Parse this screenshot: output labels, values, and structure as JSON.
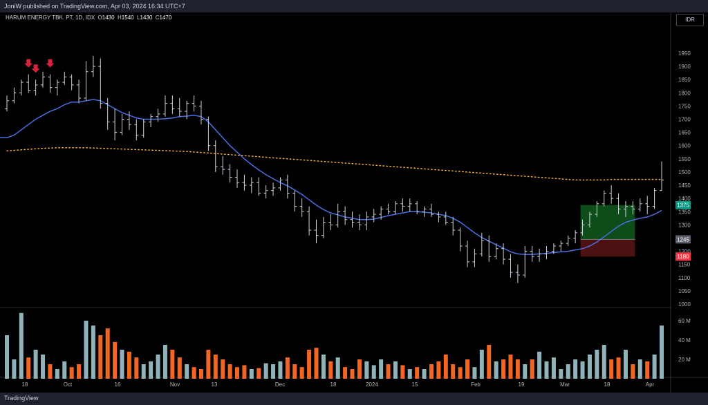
{
  "header": {
    "publish_text": "JoniW published on TradingView.com, Apr 03, 2024 16:34 UTC+7"
  },
  "legend": {
    "symbol": "HARUM ENERGY TBK. PT, 1D, IDX",
    "o_label": "O",
    "o": "1430",
    "h_label": "H",
    "h": "1540",
    "l_label": "L",
    "l": "1430",
    "c_label": "C",
    "c": "1470"
  },
  "currency_button": "IDR",
  "footer": {
    "brand": "TradingView"
  },
  "colors": {
    "ma_short": "#4a6fe0",
    "ma_long": "#f0a93a",
    "volume_up": "#8fb3b8",
    "volume_down": "#f26522",
    "target_zone": "#0f5a1e",
    "stop_zone": "#5a1414",
    "marker": "#d8213b"
  },
  "chart_data": {
    "type": "ohlc",
    "price_axis": {
      "min": 1000,
      "max": 1950,
      "ticks": [
        1000,
        1050,
        1100,
        1150,
        1200,
        1250,
        1300,
        1350,
        1400,
        1450,
        1500,
        1550,
        1600,
        1650,
        1700,
        1750,
        1800,
        1850,
        1900,
        1950
      ]
    },
    "volume_axis": {
      "ticks": [
        "20 M",
        "40 M",
        "60 M"
      ],
      "values": [
        20,
        40,
        60
      ]
    },
    "x_ticks": [
      "18",
      "Oct",
      "16",
      "Nov",
      "13",
      "Dec",
      "18",
      "2024",
      "15",
      "Feb",
      "19",
      "Mar",
      "18",
      "Apr"
    ],
    "price_labels": [
      {
        "text": "1375",
        "value": 1375,
        "color": "#089981"
      },
      {
        "text": "1245",
        "value": 1245,
        "color": "#5d606b"
      },
      {
        "text": "1180",
        "value": 1180,
        "color": "#f23645"
      }
    ],
    "bars": [
      [
        1740,
        1790,
        1730,
        1770
      ],
      [
        1770,
        1820,
        1760,
        1800
      ],
      [
        1800,
        1850,
        1790,
        1840
      ],
      [
        1840,
        1870,
        1800,
        1810
      ],
      [
        1810,
        1850,
        1790,
        1830
      ],
      [
        1830,
        1880,
        1820,
        1860
      ],
      [
        1860,
        1870,
        1800,
        1820
      ],
      [
        1820,
        1850,
        1790,
        1840
      ],
      [
        1840,
        1880,
        1830,
        1860
      ],
      [
        1860,
        1870,
        1810,
        1830
      ],
      [
        1830,
        1850,
        1760,
        1780
      ],
      [
        1780,
        1920,
        1770,
        1880
      ],
      [
        1880,
        1940,
        1860,
        1900
      ],
      [
        1900,
        1930,
        1740,
        1760
      ],
      [
        1760,
        1780,
        1660,
        1690
      ],
      [
        1690,
        1740,
        1620,
        1650
      ],
      [
        1650,
        1720,
        1640,
        1700
      ],
      [
        1700,
        1730,
        1660,
        1680
      ],
      [
        1680,
        1700,
        1620,
        1640
      ],
      [
        1640,
        1700,
        1630,
        1690
      ],
      [
        1690,
        1720,
        1670,
        1710
      ],
      [
        1710,
        1740,
        1690,
        1720
      ],
      [
        1720,
        1790,
        1710,
        1760
      ],
      [
        1760,
        1790,
        1720,
        1740
      ],
      [
        1740,
        1780,
        1710,
        1730
      ],
      [
        1730,
        1770,
        1700,
        1760
      ],
      [
        1760,
        1790,
        1730,
        1750
      ],
      [
        1750,
        1770,
        1680,
        1700
      ],
      [
        1700,
        1710,
        1580,
        1600
      ],
      [
        1600,
        1620,
        1500,
        1520
      ],
      [
        1520,
        1560,
        1490,
        1510
      ],
      [
        1510,
        1530,
        1460,
        1480
      ],
      [
        1480,
        1510,
        1440,
        1460
      ],
      [
        1460,
        1490,
        1430,
        1450
      ],
      [
        1450,
        1480,
        1420,
        1460
      ],
      [
        1460,
        1480,
        1410,
        1420
      ],
      [
        1420,
        1450,
        1400,
        1430
      ],
      [
        1430,
        1460,
        1410,
        1440
      ],
      [
        1440,
        1480,
        1430,
        1470
      ],
      [
        1470,
        1490,
        1400,
        1420
      ],
      [
        1420,
        1430,
        1350,
        1370
      ],
      [
        1370,
        1400,
        1330,
        1350
      ],
      [
        1350,
        1370,
        1260,
        1280
      ],
      [
        1280,
        1320,
        1230,
        1260
      ],
      [
        1260,
        1330,
        1250,
        1310
      ],
      [
        1310,
        1340,
        1280,
        1300
      ],
      [
        1300,
        1380,
        1290,
        1350
      ],
      [
        1350,
        1370,
        1300,
        1320
      ],
      [
        1320,
        1350,
        1290,
        1310
      ],
      [
        1310,
        1340,
        1280,
        1300
      ],
      [
        1300,
        1350,
        1280,
        1330
      ],
      [
        1330,
        1360,
        1310,
        1340
      ],
      [
        1340,
        1370,
        1320,
        1360
      ],
      [
        1360,
        1380,
        1340,
        1350
      ],
      [
        1350,
        1390,
        1340,
        1380
      ],
      [
        1380,
        1400,
        1350,
        1370
      ],
      [
        1370,
        1400,
        1350,
        1380
      ],
      [
        1380,
        1390,
        1340,
        1350
      ],
      [
        1350,
        1370,
        1330,
        1360
      ],
      [
        1360,
        1380,
        1330,
        1340
      ],
      [
        1340,
        1350,
        1310,
        1330
      ],
      [
        1330,
        1350,
        1300,
        1310
      ],
      [
        1310,
        1330,
        1260,
        1280
      ],
      [
        1280,
        1290,
        1200,
        1220
      ],
      [
        1220,
        1240,
        1140,
        1160
      ],
      [
        1160,
        1210,
        1140,
        1190
      ],
      [
        1190,
        1270,
        1180,
        1240
      ],
      [
        1240,
        1260,
        1160,
        1180
      ],
      [
        1180,
        1230,
        1170,
        1210
      ],
      [
        1210,
        1230,
        1150,
        1170
      ],
      [
        1170,
        1190,
        1100,
        1120
      ],
      [
        1120,
        1150,
        1080,
        1110
      ],
      [
        1110,
        1220,
        1100,
        1200
      ],
      [
        1200,
        1220,
        1160,
        1180
      ],
      [
        1180,
        1210,
        1160,
        1190
      ],
      [
        1190,
        1220,
        1170,
        1200
      ],
      [
        1200,
        1230,
        1190,
        1220
      ],
      [
        1220,
        1240,
        1200,
        1230
      ],
      [
        1230,
        1260,
        1220,
        1250
      ],
      [
        1250,
        1280,
        1230,
        1270
      ],
      [
        1270,
        1320,
        1260,
        1300
      ],
      [
        1300,
        1350,
        1290,
        1340
      ],
      [
        1340,
        1390,
        1330,
        1380
      ],
      [
        1380,
        1430,
        1370,
        1420
      ],
      [
        1420,
        1450,
        1380,
        1400
      ],
      [
        1400,
        1420,
        1340,
        1360
      ],
      [
        1360,
        1390,
        1330,
        1370
      ],
      [
        1370,
        1390,
        1340,
        1360
      ],
      [
        1360,
        1400,
        1350,
        1380
      ],
      [
        1380,
        1410,
        1340,
        1370
      ],
      [
        1370,
        1440,
        1360,
        1430
      ],
      [
        1430,
        1540,
        1430,
        1470
      ]
    ],
    "ma_short": [
      1630,
      1640,
      1660,
      1680,
      1700,
      1715,
      1730,
      1740,
      1755,
      1765,
      1765,
      1770,
      1775,
      1770,
      1755,
      1740,
      1725,
      1715,
      1705,
      1700,
      1700,
      1700,
      1702,
      1705,
      1710,
      1712,
      1715,
      1710,
      1690,
      1660,
      1630,
      1600,
      1575,
      1550,
      1528,
      1508,
      1490,
      1475,
      1460,
      1448,
      1432,
      1415,
      1395,
      1375,
      1358,
      1345,
      1338,
      1330,
      1325,
      1320,
      1320,
      1322,
      1328,
      1335,
      1340,
      1345,
      1350,
      1350,
      1348,
      1345,
      1340,
      1335,
      1325,
      1310,
      1290,
      1270,
      1252,
      1238,
      1225,
      1212,
      1198,
      1190,
      1188,
      1188,
      1190,
      1192,
      1195,
      1198,
      1200,
      1205,
      1210,
      1220,
      1235,
      1255,
      1275,
      1295,
      1310,
      1318,
      1325,
      1330,
      1340,
      1355
    ],
    "ma_long": [
      1580,
      1582,
      1584,
      1586,
      1588,
      1590,
      1591,
      1592,
      1592,
      1592,
      1592,
      1592,
      1591,
      1590,
      1589,
      1588,
      1587,
      1586,
      1585,
      1584,
      1583,
      1582,
      1581,
      1580,
      1579,
      1578,
      1576,
      1574,
      1572,
      1570,
      1568,
      1566,
      1564,
      1562,
      1560,
      1558,
      1556,
      1554,
      1552,
      1550,
      1548,
      1546,
      1544,
      1542,
      1540,
      1538,
      1536,
      1534,
      1532,
      1530,
      1528,
      1526,
      1524,
      1522,
      1520,
      1518,
      1516,
      1514,
      1512,
      1510,
      1508,
      1506,
      1504,
      1502,
      1500,
      1498,
      1496,
      1494,
      1492,
      1490,
      1488,
      1486,
      1484,
      1482,
      1480,
      1478,
      1476,
      1474,
      1472,
      1470,
      1470,
      1470,
      1470,
      1470,
      1472,
      1472,
      1472,
      1472,
      1472,
      1472,
      1472,
      1472
    ],
    "volume": [
      45,
      20,
      68,
      22,
      30,
      25,
      15,
      10,
      18,
      12,
      15,
      60,
      55,
      45,
      52,
      38,
      30,
      28,
      22,
      15,
      18,
      25,
      35,
      30,
      22,
      15,
      12,
      10,
      30,
      25,
      20,
      15,
      12,
      14,
      10,
      11,
      16,
      15,
      18,
      22,
      15,
      12,
      30,
      32,
      25,
      18,
      22,
      12,
      10,
      20,
      18,
      14,
      20,
      15,
      18,
      14,
      10,
      12,
      10,
      15,
      18,
      25,
      15,
      12,
      20,
      12,
      30,
      35,
      18,
      20,
      25,
      20,
      15,
      20,
      28,
      18,
      22,
      10,
      15,
      20,
      18,
      25,
      30,
      35,
      20,
      22,
      30,
      15,
      20,
      18,
      25,
      55
    ],
    "volume_up": [
      1,
      1,
      1,
      0,
      1,
      1,
      0,
      1,
      1,
      0,
      0,
      1,
      1,
      0,
      0,
      0,
      1,
      0,
      0,
      1,
      1,
      1,
      1,
      0,
      0,
      1,
      0,
      0,
      0,
      0,
      0,
      0,
      0,
      0,
      1,
      0,
      1,
      1,
      1,
      0,
      0,
      0,
      0,
      0,
      1,
      0,
      1,
      0,
      0,
      0,
      1,
      1,
      1,
      0,
      1,
      0,
      1,
      0,
      1,
      0,
      0,
      0,
      0,
      0,
      0,
      1,
      1,
      0,
      1,
      0,
      0,
      0,
      1,
      0,
      1,
      1,
      1,
      1,
      1,
      1,
      1,
      1,
      1,
      1,
      0,
      0,
      1,
      0,
      1,
      0,
      1,
      1
    ],
    "signals": [
      {
        "bar": 3,
        "type": "down"
      },
      {
        "bar": 4,
        "type": "down"
      },
      {
        "bar": 6,
        "type": "down"
      }
    ],
    "position": {
      "start_bar": 80,
      "end_bar": 87,
      "entry": 1245,
      "target": 1375,
      "stop": 1180
    }
  }
}
